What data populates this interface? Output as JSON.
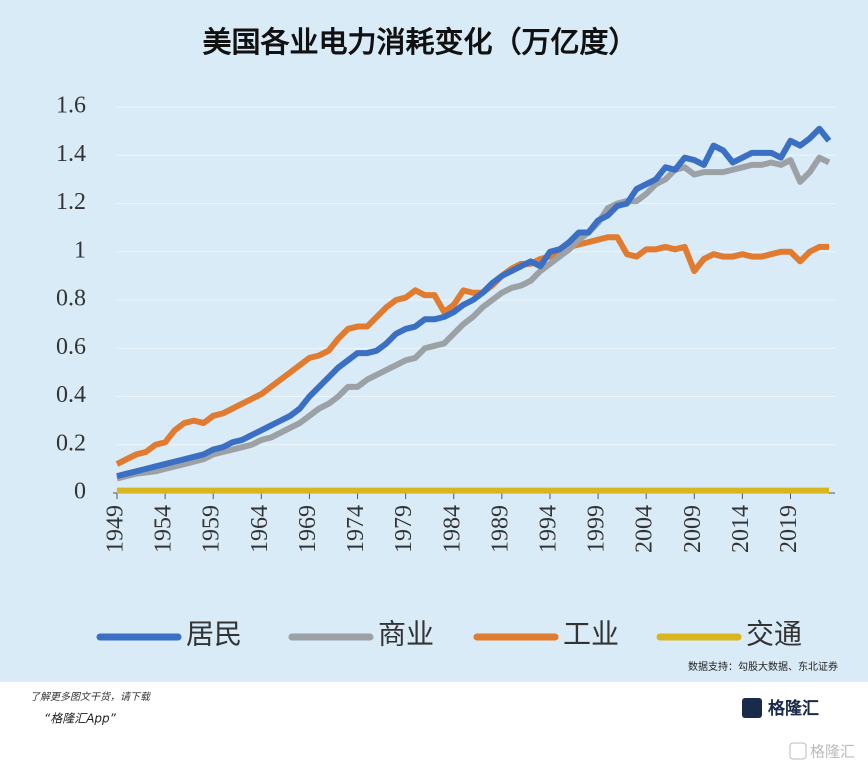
{
  "chart_data": {
    "type": "line",
    "title": "美国各业电力消耗变化（万亿度）",
    "x": [
      1949,
      1950,
      1951,
      1952,
      1953,
      1954,
      1955,
      1956,
      1957,
      1958,
      1959,
      1960,
      1961,
      1962,
      1963,
      1964,
      1965,
      1966,
      1967,
      1968,
      1969,
      1970,
      1971,
      1972,
      1973,
      1974,
      1975,
      1976,
      1977,
      1978,
      1979,
      1980,
      1981,
      1982,
      1983,
      1984,
      1985,
      1986,
      1987,
      1988,
      1989,
      1990,
      1991,
      1992,
      1993,
      1994,
      1995,
      1996,
      1997,
      1998,
      1999,
      2000,
      2001,
      2002,
      2003,
      2004,
      2005,
      2006,
      2007,
      2008,
      2009,
      2010,
      2011,
      2012,
      2013,
      2014,
      2015,
      2016,
      2017,
      2018,
      2019,
      2020,
      2021,
      2022,
      2023
    ],
    "series": [
      {
        "name": "居民",
        "color": "#3a6fc4",
        "values": [
          0.07,
          0.08,
          0.09,
          0.1,
          0.11,
          0.12,
          0.13,
          0.14,
          0.15,
          0.16,
          0.18,
          0.19,
          0.21,
          0.22,
          0.24,
          0.26,
          0.28,
          0.3,
          0.32,
          0.35,
          0.4,
          0.44,
          0.48,
          0.52,
          0.55,
          0.58,
          0.58,
          0.59,
          0.62,
          0.66,
          0.68,
          0.69,
          0.72,
          0.72,
          0.73,
          0.75,
          0.78,
          0.8,
          0.83,
          0.87,
          0.9,
          0.92,
          0.94,
          0.96,
          0.94,
          1.0,
          1.01,
          1.04,
          1.08,
          1.08,
          1.13,
          1.15,
          1.19,
          1.2,
          1.26,
          1.28,
          1.3,
          1.35,
          1.34,
          1.39,
          1.38,
          1.36,
          1.44,
          1.42,
          1.37,
          1.39,
          1.41,
          1.41,
          1.41,
          1.39,
          1.46,
          1.44,
          1.47,
          1.51,
          1.46
        ]
      },
      {
        "name": "商业",
        "color": "#9ca1a6",
        "values": [
          0.06,
          0.07,
          0.08,
          0.085,
          0.09,
          0.1,
          0.11,
          0.12,
          0.13,
          0.14,
          0.16,
          0.17,
          0.18,
          0.19,
          0.2,
          0.22,
          0.23,
          0.25,
          0.27,
          0.29,
          0.32,
          0.35,
          0.37,
          0.4,
          0.44,
          0.44,
          0.47,
          0.49,
          0.51,
          0.53,
          0.55,
          0.56,
          0.6,
          0.61,
          0.62,
          0.66,
          0.7,
          0.73,
          0.77,
          0.8,
          0.83,
          0.85,
          0.86,
          0.88,
          0.92,
          0.95,
          0.98,
          1.01,
          1.05,
          1.08,
          1.12,
          1.18,
          1.2,
          1.21,
          1.21,
          1.24,
          1.28,
          1.3,
          1.34,
          1.35,
          1.32,
          1.33,
          1.33,
          1.33,
          1.34,
          1.35,
          1.36,
          1.36,
          1.37,
          1.36,
          1.38,
          1.29,
          1.33,
          1.39,
          1.37
        ]
      },
      {
        "name": "工业",
        "color": "#e07b30",
        "values": [
          0.12,
          0.14,
          0.16,
          0.17,
          0.2,
          0.21,
          0.26,
          0.29,
          0.3,
          0.29,
          0.32,
          0.33,
          0.35,
          0.37,
          0.39,
          0.41,
          0.44,
          0.47,
          0.5,
          0.53,
          0.56,
          0.57,
          0.59,
          0.64,
          0.68,
          0.69,
          0.69,
          0.73,
          0.77,
          0.8,
          0.81,
          0.84,
          0.82,
          0.82,
          0.75,
          0.78,
          0.84,
          0.83,
          0.83,
          0.86,
          0.9,
          0.93,
          0.95,
          0.95,
          0.97,
          0.98,
          1.01,
          1.02,
          1.03,
          1.04,
          1.05,
          1.06,
          1.06,
          0.99,
          0.98,
          1.01,
          1.01,
          1.02,
          1.01,
          1.02,
          0.92,
          0.97,
          0.99,
          0.98,
          0.98,
          0.99,
          0.98,
          0.98,
          0.99,
          1.0,
          1.0,
          0.96,
          1.0,
          1.02,
          1.02
        ]
      },
      {
        "name": "交通",
        "color": "#d9b520",
        "values": [
          0.01,
          0.01,
          0.01,
          0.01,
          0.01,
          0.01,
          0.01,
          0.01,
          0.01,
          0.01,
          0.01,
          0.01,
          0.01,
          0.01,
          0.01,
          0.01,
          0.01,
          0.01,
          0.01,
          0.01,
          0.01,
          0.01,
          0.01,
          0.01,
          0.01,
          0.01,
          0.01,
          0.01,
          0.01,
          0.01,
          0.01,
          0.01,
          0.01,
          0.01,
          0.01,
          0.01,
          0.01,
          0.01,
          0.01,
          0.01,
          0.01,
          0.01,
          0.01,
          0.01,
          0.01,
          0.01,
          0.01,
          0.01,
          0.01,
          0.01,
          0.01,
          0.01,
          0.01,
          0.01,
          0.01,
          0.01,
          0.01,
          0.01,
          0.01,
          0.01,
          0.01,
          0.01,
          0.01,
          0.01,
          0.01,
          0.01,
          0.01,
          0.01,
          0.01,
          0.01,
          0.01,
          0.01,
          0.01,
          0.01,
          0.01
        ]
      }
    ],
    "xlim": [
      1949,
      2023
    ],
    "xticks": [
      1949,
      1954,
      1959,
      1964,
      1969,
      1974,
      1979,
      1984,
      1989,
      1994,
      1999,
      2004,
      2009,
      2014,
      2019
    ],
    "ylim": [
      0,
      1.6
    ],
    "yticks": [
      0,
      0.2,
      0.4,
      0.6,
      0.8,
      1,
      1.2,
      1.4,
      1.6
    ],
    "grid": true,
    "source": "数据支持：勾股大数据、东北证券"
  },
  "footer": {
    "promo": "了解更多图文干货，请下载",
    "app": "“格隆汇App”",
    "logo": "格隆汇",
    "watermark": "格隆汇"
  }
}
